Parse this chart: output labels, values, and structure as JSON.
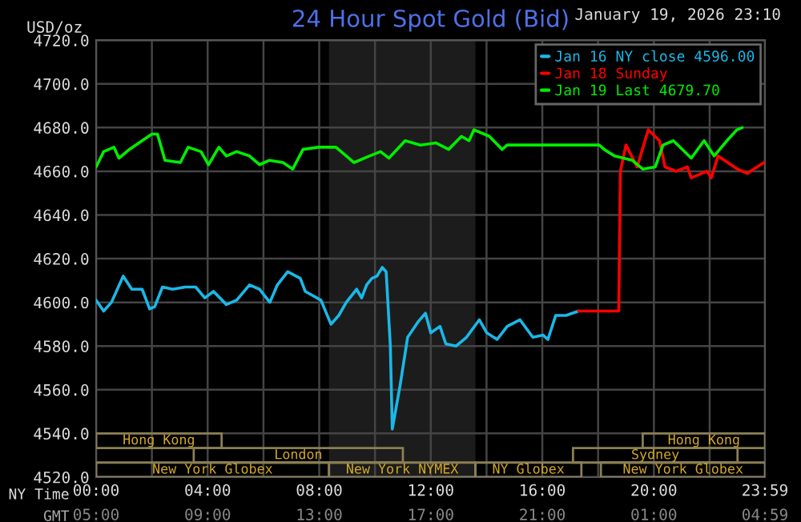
{
  "chart_data": {
    "type": "line",
    "title": "24 Hour Spot Gold (Bid)",
    "ylabel": "USD/oz",
    "xlabel": "NY Time",
    "x2label": "GMT",
    "annotations": [
      "January 19, 2026 23:10",
      "Hong Kong",
      "London",
      "New York Globex",
      "New York NYMEX",
      "NY Globex",
      "New York Globex",
      "Sydney",
      "Hong Kong"
    ],
    "xlim": [
      0,
      23.983
    ],
    "x2lim": [
      "2026-01-19T05:00",
      "2026-01-20T04:59"
    ],
    "ylim": [
      4520,
      4720
    ],
    "xticks": [
      {
        "value": 0,
        "label": "00:00"
      },
      {
        "value": 2,
        "label": null
      },
      {
        "value": 4,
        "label": "04:00"
      },
      {
        "value": 6,
        "label": null
      },
      {
        "value": 8,
        "label": "08:00"
      },
      {
        "value": 10,
        "label": null
      },
      {
        "value": 12,
        "label": "12:00"
      },
      {
        "value": 14,
        "label": null
      },
      {
        "value": 16,
        "label": "16:00"
      },
      {
        "value": 18,
        "label": null
      },
      {
        "value": 20,
        "label": "20:00"
      },
      {
        "value": 22,
        "label": null
      },
      {
        "value": 23.983,
        "label": "23:59"
      }
    ],
    "x2ticks": [
      {
        "value": "2026-01-19T05:00",
        "label": "05:00"
      },
      {
        "value": "2026-01-19T09:00",
        "label": "09:00"
      },
      {
        "value": "2026-01-19T13:00",
        "label": "13:00"
      },
      {
        "value": "2026-01-19T17:00",
        "label": "17:00"
      },
      {
        "value": "2026-01-19T21:00",
        "label": "21:00"
      },
      {
        "value": "2026-01-20T01:00",
        "label": "01:00"
      },
      {
        "value": "2026-01-20T04:59",
        "label": "04:59"
      }
    ],
    "yticks": [
      {
        "value": 4520,
        "label": "4520.0"
      },
      {
        "value": 4540,
        "label": "4540.0"
      },
      {
        "value": 4560,
        "label": "4560.0"
      },
      {
        "value": 4580,
        "label": "4580.0"
      },
      {
        "value": 4600,
        "label": "4600.0"
      },
      {
        "value": 4620,
        "label": "4620.0"
      },
      {
        "value": 4640,
        "label": "4640.0"
      },
      {
        "value": 4660,
        "label": "4660.0"
      },
      {
        "value": 4680,
        "label": "4680.0"
      },
      {
        "value": 4700,
        "label": "4700.0"
      },
      {
        "value": 4720,
        "label": "4720.0"
      }
    ],
    "grid": true,
    "legend": "top right",
    "marker": "none",
    "line_style": "solid",
    "bands": [
      {
        "axis": "x",
        "from": 8.35,
        "to": 13.6,
        "color": "#1c1c1c"
      }
    ],
    "series": [
      {
        "name": "Jan 16 NY close 4596.00",
        "color": "#1ab8e8",
        "x": [
          0,
          0.27,
          0.55,
          0.97,
          1.28,
          1.65,
          1.92,
          2.1,
          2.38,
          2.75,
          3.2,
          3.57,
          3.9,
          4.21,
          4.67,
          5.04,
          5.5,
          5.86,
          6.23,
          6.5,
          6.87,
          7.32,
          7.5,
          8.06,
          8.42,
          8.7,
          8.97,
          9.34,
          9.52,
          9.7,
          9.89,
          10.07,
          10.26,
          10.4,
          10.55,
          10.62,
          10.9,
          11.17,
          11.54,
          11.81,
          12.0,
          12.33,
          12.54,
          12.91,
          13.28,
          13.74,
          14.01,
          14.38,
          14.74,
          15.2,
          15.66,
          16.03,
          16.2,
          16.48,
          16.85,
          17.3
        ],
        "values": [
          4601,
          4596,
          4600,
          4612,
          4606,
          4606,
          4597,
          4598,
          4607,
          4606,
          4607,
          4607,
          4602,
          4605,
          4599,
          4601,
          4608,
          4606,
          4600,
          4608,
          4614,
          4611,
          4605,
          4601,
          4590,
          4594,
          4600,
          4606,
          4602,
          4608,
          4611,
          4612,
          4616,
          4614,
          4580,
          4542,
          4562,
          4584,
          4591,
          4595,
          4586,
          4589,
          4581,
          4580,
          4584,
          4592,
          4586,
          4583,
          4589,
          4592,
          4584,
          4585,
          4583,
          4594,
          4594,
          4596
        ]
      },
      {
        "name": "Jan 18 Sunday",
        "color": "#ff0000",
        "x": [
          17.3,
          18.0,
          18.5,
          18.74,
          18.8,
          19.0,
          19.2,
          19.4,
          19.8,
          20.2,
          20.4,
          20.8,
          21.2,
          21.34,
          21.9,
          22.06,
          22.3,
          23.0,
          23.35,
          23.7,
          23.95
        ],
        "values": [
          4596,
          4596,
          4596,
          4596,
          4660,
          4672,
          4667,
          4662,
          4679,
          4674,
          4662,
          4660,
          4662,
          4657,
          4660,
          4657,
          4667,
          4661,
          4659,
          4662,
          4664
        ]
      },
      {
        "name": "Jan 19 Last 4679.70",
        "color": "#00ee00",
        "x": [
          0,
          0.27,
          0.64,
          0.82,
          1.19,
          1.65,
          2.0,
          2.2,
          2.47,
          3.02,
          3.3,
          3.76,
          4.03,
          4.4,
          4.67,
          5.04,
          5.5,
          5.86,
          6.2,
          6.7,
          7.05,
          7.42,
          7.97,
          8.6,
          9.25,
          9.8,
          10.2,
          10.5,
          11.08,
          11.63,
          12.18,
          12.64,
          13.1,
          13.37,
          13.55,
          14.1,
          14.56,
          14.74,
          18.04,
          18.22,
          18.59,
          19.23,
          19.6,
          20.05,
          20.33,
          20.7,
          21.34,
          21.8,
          22.16,
          22.62,
          22.98,
          23.17
        ],
        "values": [
          4662,
          4669,
          4671,
          4666,
          4670,
          4674,
          4677,
          4677,
          4665,
          4664,
          4671,
          4669,
          4663,
          4671,
          4667,
          4669,
          4667,
          4663,
          4665,
          4664,
          4661,
          4670,
          4671,
          4671,
          4664,
          4667,
          4669,
          4666,
          4674,
          4672,
          4673,
          4670,
          4676,
          4674,
          4679,
          4676,
          4670,
          4672,
          4672,
          4670,
          4667,
          4665,
          4661,
          4662,
          4672,
          4674,
          4666,
          4674,
          4667,
          4674,
          4679,
          4680
        ]
      }
    ]
  }
}
